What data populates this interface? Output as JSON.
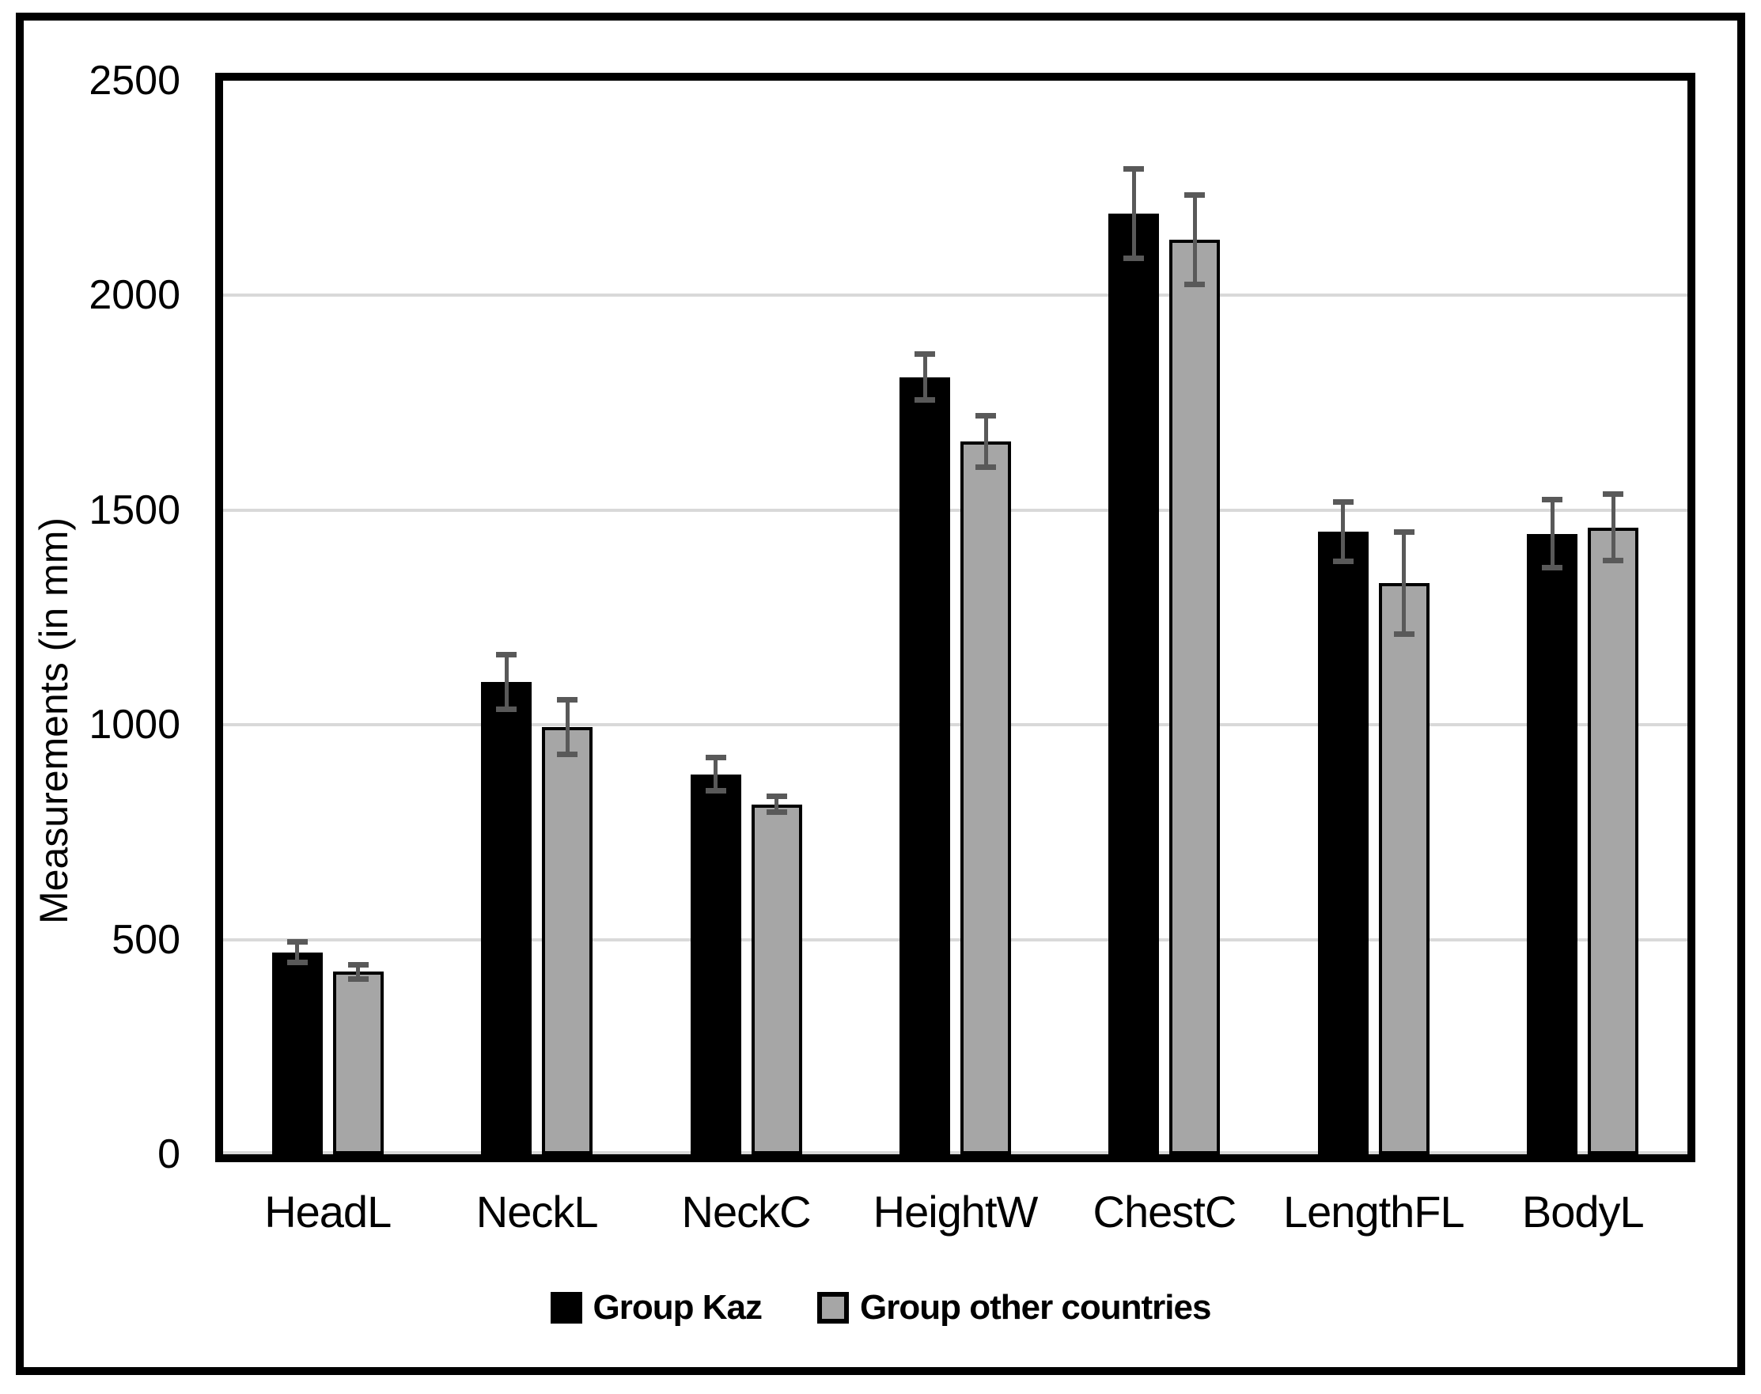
{
  "chart_data": {
    "type": "bar",
    "title": "",
    "xlabel": "",
    "ylabel": "Measurements (in mm)",
    "ylim": [
      0,
      2500
    ],
    "yticks": [
      0,
      500,
      1000,
      1500,
      2000,
      2500
    ],
    "grid": true,
    "legend_position": "bottom",
    "categories": [
      "HeadL",
      "NeckL",
      "NeckC",
      "HeightW",
      "ChestC",
      "LengthFL",
      "BodyL"
    ],
    "series": [
      {
        "name": "Group Kaz",
        "color": "#000000",
        "values": [
          470,
          1100,
          885,
          1810,
          2190,
          1450,
          1445
        ],
        "errors": [
          25,
          65,
          40,
          55,
          105,
          70,
          80
        ]
      },
      {
        "name": "Group other countries",
        "color": "#a6a6a6",
        "values": [
          425,
          995,
          815,
          1660,
          2130,
          1330,
          1460
        ],
        "errors": [
          18,
          65,
          20,
          60,
          105,
          120,
          78
        ]
      }
    ],
    "styles": {
      "error_bar_color": "#595959",
      "gridline_color": "#d9d9d9",
      "bar_outline_color": "#000000",
      "frame_color": "#000000",
      "background": "#ffffff"
    }
  }
}
